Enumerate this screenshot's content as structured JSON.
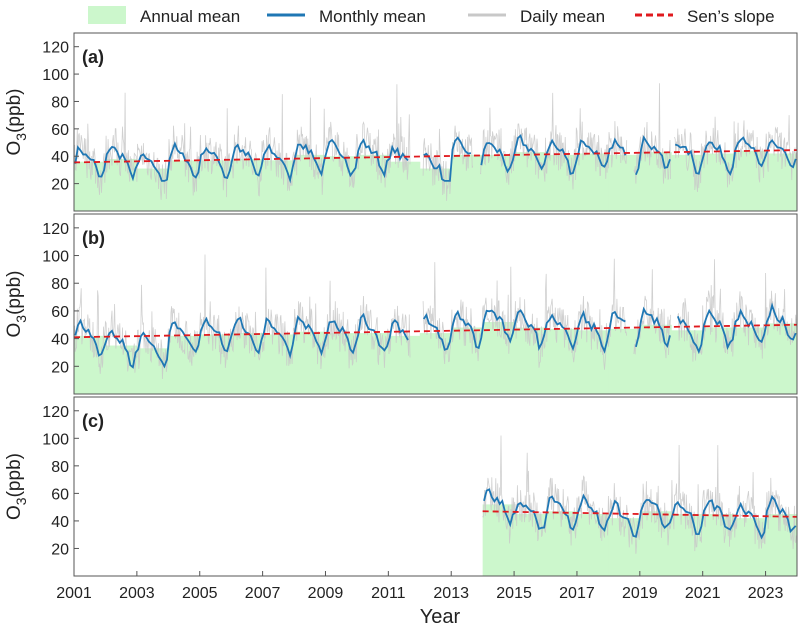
{
  "colors": {
    "annual": "#ccf7cc",
    "monthly": "#1f77b4",
    "daily": "#c8c8c8",
    "sens": "#e0191e",
    "frame": "#555555"
  },
  "legend": {
    "items": [
      {
        "label": "Annual mean",
        "kind": "patch",
        "color": "#ccf7cc"
      },
      {
        "label": "Monthly mean",
        "kind": "line",
        "color": "#1f77b4"
      },
      {
        "label": "Daily mean",
        "kind": "line",
        "color": "#c8c8c8"
      },
      {
        "label": "Sen’s slope",
        "kind": "dash",
        "color": "#e0191e"
      }
    ]
  },
  "chart_data": {
    "type": "line",
    "xlabel": "Year",
    "xlim": [
      2001,
      2024
    ],
    "xticks": [
      2001,
      2003,
      2005,
      2007,
      2009,
      2011,
      2013,
      2015,
      2017,
      2019,
      2021,
      2023
    ],
    "ylabel": "O₃(ppb)",
    "ylabel_main": "O",
    "ylabel_sub": "3",
    "ylabel_unit": "(ppb)",
    "ylim": [
      0,
      130
    ],
    "yticks": [
      20,
      40,
      60,
      80,
      100,
      120
    ],
    "grid": false,
    "legend_position": "top",
    "panels": [
      {
        "label": "(a)",
        "period": [
          2001,
          2024
        ],
        "gaps": [
          [
            2011.7,
            2012.1
          ],
          [
            2013.7,
            2013.9
          ],
          [
            2018.6,
            2018.8
          ],
          [
            2020.0,
            2020.1
          ]
        ],
        "sens_slope": {
          "start": [
            2001,
            35.5
          ],
          "end": [
            2024,
            44.5
          ]
        },
        "annual_mean": [
          {
            "year": 2001,
            "value": 36
          },
          {
            "year": 2002,
            "value": 38
          },
          {
            "year": 2003,
            "value": 31
          },
          {
            "year": 2004,
            "value": 37
          },
          {
            "year": 2005,
            "value": 37
          },
          {
            "year": 2006,
            "value": 38
          },
          {
            "year": 2007,
            "value": 37
          },
          {
            "year": 2008,
            "value": 41
          },
          {
            "year": 2009,
            "value": 40
          },
          {
            "year": 2010,
            "value": 41
          },
          {
            "year": 2011,
            "value": 36
          },
          {
            "year": 2012,
            "value": 31
          },
          {
            "year": 2013,
            "value": 41
          },
          {
            "year": 2014,
            "value": 41
          },
          {
            "year": 2015,
            "value": 43
          },
          {
            "year": 2016,
            "value": 41
          },
          {
            "year": 2017,
            "value": 42
          },
          {
            "year": 2018,
            "value": 41
          },
          {
            "year": 2019,
            "value": 43
          },
          {
            "year": 2020,
            "value": 41
          },
          {
            "year": 2021,
            "value": 42
          },
          {
            "year": 2022,
            "value": 44
          },
          {
            "year": 2023,
            "value": 42
          }
        ],
        "monthly_annual_cycle": {
          "amplitude": 9,
          "trough": 30,
          "peak": 60
        }
      },
      {
        "label": "(b)",
        "period": [
          2001,
          2024
        ],
        "gaps": [
          [
            2011.7,
            2012.1
          ],
          [
            2018.6,
            2018.8
          ],
          [
            2020.0,
            2020.2
          ]
        ],
        "sens_slope": {
          "start": [
            2001,
            41
          ],
          "end": [
            2024,
            50
          ]
        },
        "annual_mean": [
          {
            "year": 2001,
            "value": 42
          },
          {
            "year": 2002,
            "value": 35
          },
          {
            "year": 2003,
            "value": 33
          },
          {
            "year": 2004,
            "value": 42
          },
          {
            "year": 2005,
            "value": 43
          },
          {
            "year": 2006,
            "value": 44
          },
          {
            "year": 2007,
            "value": 43
          },
          {
            "year": 2008,
            "value": 45
          },
          {
            "year": 2009,
            "value": 44
          },
          {
            "year": 2010,
            "value": 44
          },
          {
            "year": 2011,
            "value": 42
          },
          {
            "year": 2012,
            "value": 44
          },
          {
            "year": 2013,
            "value": 48
          },
          {
            "year": 2014,
            "value": 52
          },
          {
            "year": 2015,
            "value": 48
          },
          {
            "year": 2016,
            "value": 47
          },
          {
            "year": 2017,
            "value": 46
          },
          {
            "year": 2018,
            "value": 47
          },
          {
            "year": 2019,
            "value": 50
          },
          {
            "year": 2020,
            "value": 46
          },
          {
            "year": 2021,
            "value": 48
          },
          {
            "year": 2022,
            "value": 48
          },
          {
            "year": 2023,
            "value": 51
          }
        ],
        "monthly_annual_cycle": {
          "amplitude": 10,
          "trough": 25,
          "peak": 70
        }
      },
      {
        "label": "(c)",
        "period": [
          2014,
          2024
        ],
        "gaps": [],
        "sens_slope": {
          "start": [
            2014,
            47
          ],
          "end": [
            2024,
            43
          ]
        },
        "annual_mean": [
          {
            "year": 2014,
            "value": 52
          },
          {
            "year": 2015,
            "value": 45
          },
          {
            "year": 2016,
            "value": 47
          },
          {
            "year": 2017,
            "value": 45
          },
          {
            "year": 2018,
            "value": 42
          },
          {
            "year": 2019,
            "value": 47
          },
          {
            "year": 2020,
            "value": 45
          },
          {
            "year": 2021,
            "value": 45
          },
          {
            "year": 2022,
            "value": 42
          },
          {
            "year": 2023,
            "value": 45
          }
        ],
        "monthly_annual_cycle": {
          "amplitude": 10,
          "trough": 25,
          "peak": 65
        }
      }
    ]
  }
}
